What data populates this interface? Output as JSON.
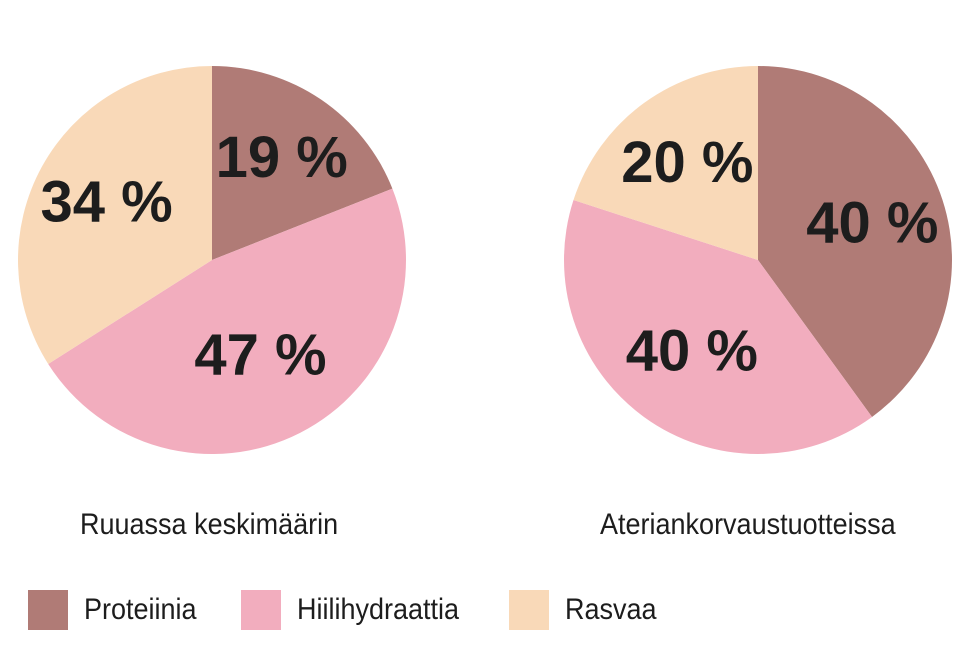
{
  "chart_data": [
    {
      "type": "pie",
      "title": "Ruuassa keskimäärin",
      "categories": [
        "Proteiinia",
        "Hiilihydraattia",
        "Rasvaa"
      ],
      "values": [
        19,
        47,
        34
      ],
      "labels": [
        "19 %",
        "47 %",
        "34 %"
      ],
      "colors": [
        "#b07b76",
        "#f2adbe",
        "#f9d9b8"
      ],
      "start": "12 o'clock, clockwise"
    },
    {
      "type": "pie",
      "title": "Ateriankorvaustuotteissa",
      "categories": [
        "Proteiinia",
        "Hiilihydraattia",
        "Rasvaa"
      ],
      "values": [
        40,
        40,
        20
      ],
      "labels": [
        "40 %",
        "40 %",
        "20 %"
      ],
      "colors": [
        "#b07b76",
        "#f2adbe",
        "#f9d9b8"
      ],
      "start": "12 o'clock, clockwise"
    }
  ],
  "legend": {
    "placement": "bottom",
    "items": [
      {
        "label": "Proteiinia",
        "color": "#b07b76"
      },
      {
        "label": "Hiilihydraattia",
        "color": "#f2adbe"
      },
      {
        "label": "Rasvaa",
        "color": "#f9d9b8"
      }
    ]
  }
}
